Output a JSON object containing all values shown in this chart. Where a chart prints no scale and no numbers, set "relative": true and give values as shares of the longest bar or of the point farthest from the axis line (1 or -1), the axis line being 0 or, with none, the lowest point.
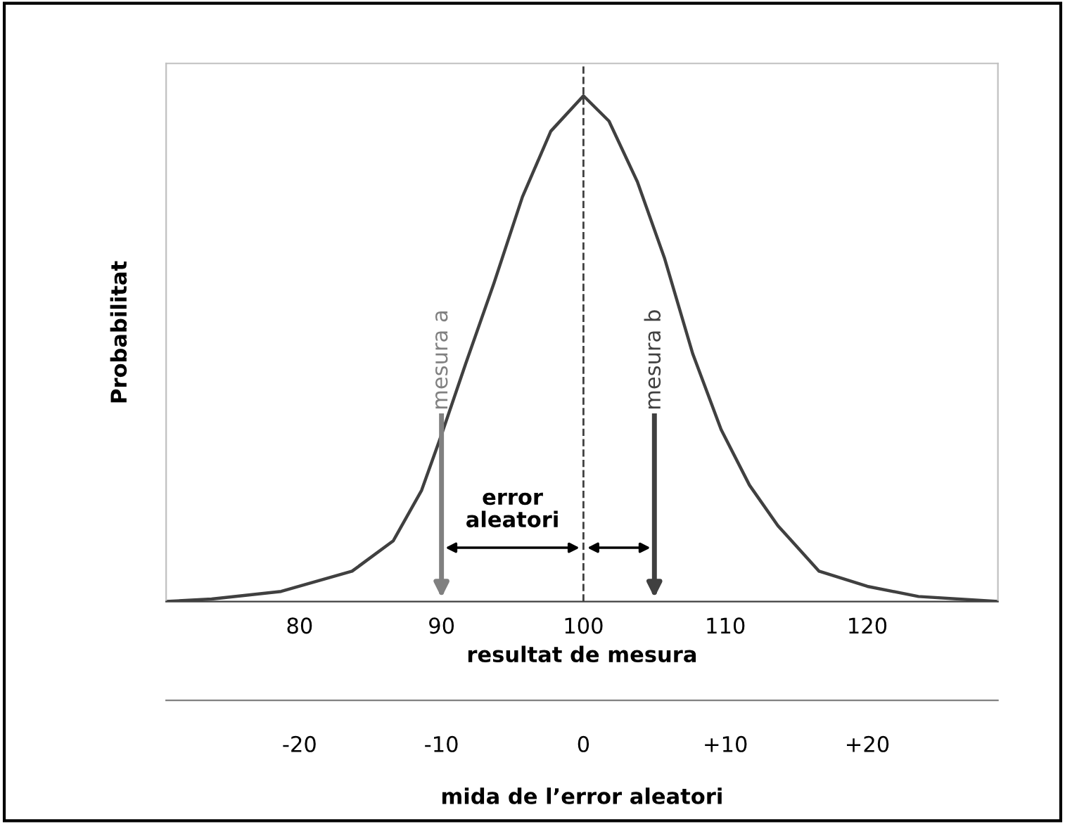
{
  "chart_data": {
    "type": "line",
    "relative": true,
    "xlabel": "resultat de mesura",
    "ylabel": "Probabilitat",
    "x2label": "mida de l’error aleatori",
    "xlim": [
      70.6,
      129.2
    ],
    "xticks": [
      80,
      90,
      100,
      110,
      120
    ],
    "x2lim": [
      -29.4,
      29.2
    ],
    "x2ticks": [
      -20,
      -10,
      0,
      {
        "value": 10,
        "label": "+10"
      },
      {
        "value": 20,
        "label": "+20"
      }
    ],
    "series": [
      {
        "color": "#404040",
        "x": [
          70.6,
          73.8,
          78.7,
          83.7,
          86.6,
          88.6,
          90,
          91.7,
          93.7,
          95.7,
          97.7,
          100,
          101.8,
          103.8,
          105.7,
          107.7,
          109.7,
          111.7,
          113.7,
          116.6,
          120,
          123.6,
          129.2
        ],
        "values": [
          0,
          0.005,
          0.02,
          0.06,
          0.12,
          0.22,
          0.33,
          0.47,
          0.63,
          0.8,
          0.93,
          1,
          0.95,
          0.83,
          0.68,
          0.49,
          0.34,
          0.23,
          0.15,
          0.06,
          0.03,
          0.01,
          0
        ]
      }
    ],
    "ref_lines": [
      {
        "axis": "x",
        "value": 100,
        "color": "#404040",
        "line_style": "dashed"
      },
      {
        "axis": "x",
        "value": 90,
        "label": "mesura a",
        "color": "#808080"
      },
      {
        "axis": "x",
        "value": 105,
        "label": "mesura b",
        "color": "#404040"
      }
    ],
    "annotations": [
      "error\naleatori"
    ],
    "marker": "none",
    "line_style": "solid",
    "grid": false,
    "legend": false
  }
}
